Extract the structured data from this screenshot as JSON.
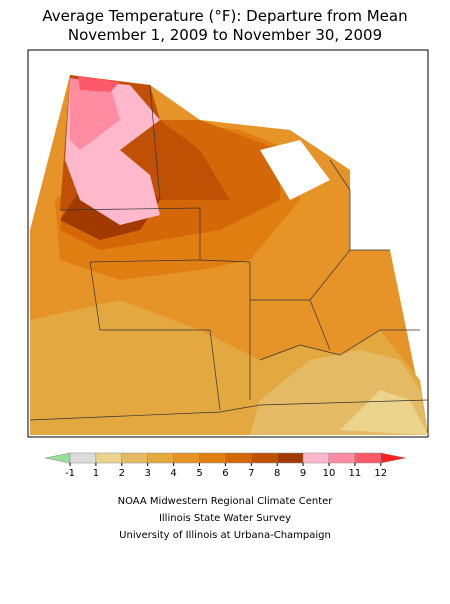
{
  "title": [
    "Average Temperature (°F): Departure from Mean",
    "November 1, 2009 to November 30, 2009"
  ],
  "legend": {
    "labels": [
      -1,
      1,
      2,
      3,
      4,
      5,
      6,
      7,
      8,
      9,
      10,
      11,
      12
    ],
    "colors": [
      "#98e098",
      "#dcdcdc",
      "#ecd38c",
      "#e4bb64",
      "#e4a840",
      "#e69428",
      "#e07e12",
      "#d46808",
      "#c05004",
      "#a03a00",
      "#ffb8cc",
      "#ff8ca0",
      "#ff5868",
      "#ff2020"
    ]
  },
  "credits": [
    "NOAA Midwestern Regional Climate Center",
    "Illinois State Water Survey",
    "University of Illinois at Urbana-Champaign"
  ]
}
